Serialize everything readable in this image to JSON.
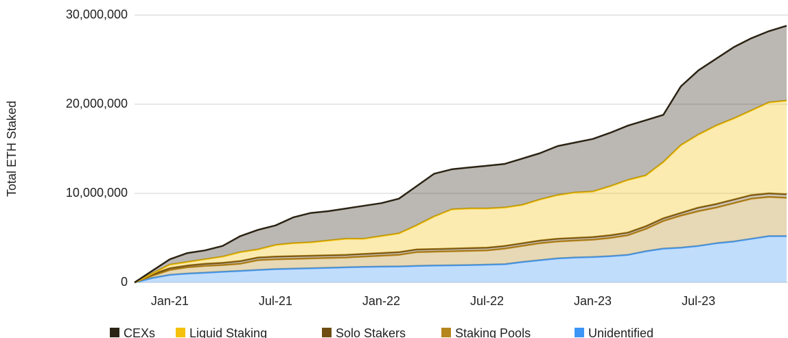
{
  "chart_data": {
    "type": "stacked_area",
    "y_axis_label": "Total ETH Staked",
    "categories": [
      null,
      null,
      "Jan-21",
      null,
      null,
      null,
      null,
      null,
      "Jul-21",
      null,
      null,
      null,
      null,
      null,
      "Jan-22",
      null,
      null,
      null,
      null,
      null,
      "Jul-22",
      null,
      null,
      null,
      null,
      null,
      "Jan-23",
      null,
      null,
      null,
      null,
      null,
      "Jul-23",
      null,
      null,
      null,
      null,
      null
    ],
    "ylim": [
      0,
      30000000
    ],
    "yticks": [
      0,
      {
        "value": 10000000,
        "label": "10,000,000"
      },
      {
        "value": 20000000,
        "label": "20,000,000"
      },
      {
        "value": 30000000,
        "label": "30,000,000"
      }
    ],
    "grid": true,
    "legend": "bottom",
    "series": [
      {
        "name": "Unidentified",
        "color": "#3d95f5",
        "values": [
          0,
          500000,
          850000,
          1000000,
          1100000,
          1200000,
          1300000,
          1400000,
          1500000,
          1550000,
          1600000,
          1650000,
          1700000,
          1750000,
          1780000,
          1800000,
          1850000,
          1900000,
          1920000,
          1950000,
          2000000,
          2050000,
          2300000,
          2500000,
          2700000,
          2800000,
          2850000,
          2950000,
          3100000,
          3500000,
          3800000,
          3900000,
          4100000,
          4400000,
          4600000,
          4900000,
          5200000,
          5200000
        ]
      },
      {
        "name": "Staking Pools",
        "color": "#b5861c",
        "values": [
          0,
          250000,
          550000,
          700000,
          750000,
          750000,
          800000,
          1100000,
          1100000,
          1100000,
          1100000,
          1100000,
          1100000,
          1150000,
          1220000,
          1300000,
          1550000,
          1550000,
          1580000,
          1600000,
          1600000,
          1750000,
          1800000,
          1900000,
          1900000,
          1900000,
          1950000,
          2050000,
          2200000,
          2500000,
          3100000,
          3600000,
          3900000,
          4000000,
          4300000,
          4500000,
          4400000,
          4300000
        ]
      },
      {
        "name": "Solo Stakers",
        "color": "#6e4c12",
        "values": [
          0,
          150000,
          200000,
          200000,
          250000,
          250000,
          300000,
          300000,
          300000,
          300000,
          300000,
          300000,
          300000,
          300000,
          300000,
          300000,
          300000,
          300000,
          300000,
          300000,
          300000,
          300000,
          300000,
          300000,
          300000,
          300000,
          300000,
          300000,
          300000,
          300000,
          300000,
          300000,
          400000,
          400000,
          400000,
          400000,
          400000,
          400000
        ]
      },
      {
        "name": "Liquid Staking",
        "color": "#f4c20d",
        "values": [
          0,
          100000,
          400000,
          400000,
          500000,
          700000,
          1000000,
          900000,
          1300000,
          1450000,
          1500000,
          1650000,
          1800000,
          1700000,
          1900000,
          2100000,
          2700000,
          3650000,
          4400000,
          4450000,
          4400000,
          4300000,
          4300000,
          4600000,
          4900000,
          5100000,
          5100000,
          5500000,
          5900000,
          5700000,
          6300000,
          7600000,
          8200000,
          8800000,
          9100000,
          9500000,
          10200000,
          10500000
        ]
      },
      {
        "name": "CEXs",
        "color": "#2b2314",
        "values": [
          0,
          300000,
          600000,
          1000000,
          1000000,
          1200000,
          1800000,
          2200000,
          2200000,
          2900000,
          3300000,
          3300000,
          3400000,
          3700000,
          3700000,
          3900000,
          4400000,
          4800000,
          4500000,
          4600000,
          4800000,
          4900000,
          5200000,
          5200000,
          5500000,
          5600000,
          5900000,
          6000000,
          6100000,
          6200000,
          5300000,
          6600000,
          7200000,
          7500000,
          8000000,
          8100000,
          8000000,
          8400000
        ]
      }
    ]
  }
}
